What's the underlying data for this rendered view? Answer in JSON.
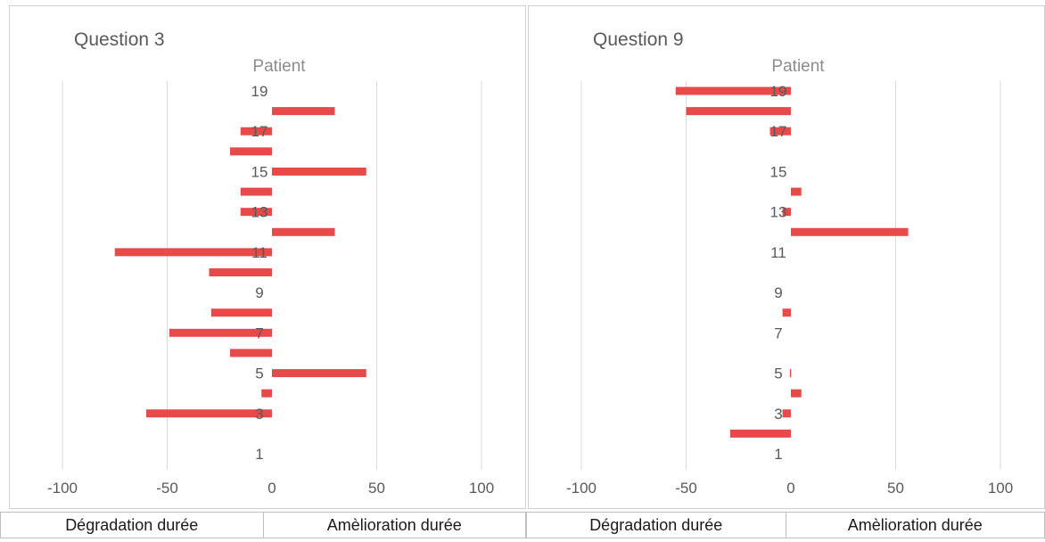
{
  "chart_data": [
    {
      "type": "bar",
      "orientation": "horizontal",
      "title": "Question 3",
      "ylabel": "Patient",
      "y_ticks": [
        1,
        3,
        5,
        7,
        9,
        11,
        13,
        15,
        17,
        19
      ],
      "ylim": [
        1,
        19
      ],
      "x_ticks": [
        -100,
        -50,
        0,
        50,
        100
      ],
      "xlim": [
        -100,
        100
      ],
      "grid": true,
      "series": [
        {
          "color": "#e84a4a",
          "patients": [
            3,
            4,
            5,
            6,
            7,
            8,
            10,
            11,
            12,
            13,
            14,
            15,
            16,
            17,
            18
          ],
          "values": [
            -60,
            -5,
            45,
            -20,
            -49,
            -29,
            -30,
            -75,
            30,
            -15,
            -15,
            45,
            -20,
            -15,
            30
          ]
        }
      ]
    },
    {
      "type": "bar",
      "orientation": "horizontal",
      "title": "Question 9",
      "ylabel": "Patient",
      "y_ticks": [
        1,
        3,
        5,
        7,
        9,
        11,
        13,
        15,
        17,
        19
      ],
      "ylim": [
        1,
        19
      ],
      "x_ticks": [
        -100,
        -50,
        0,
        50,
        100
      ],
      "xlim": [
        -100,
        100
      ],
      "grid": true,
      "series": [
        {
          "color": "#e84a4a",
          "patients": [
            2,
            3,
            4,
            5,
            8,
            12,
            13,
            14,
            17,
            18,
            19
          ],
          "values": [
            -29,
            -4,
            5,
            -0.5,
            -4,
            56,
            -4,
            5,
            -10,
            -50,
            -55
          ]
        }
      ]
    }
  ],
  "footer": {
    "left_label": "Dégradation durée",
    "right_label": "Amèlioration durée"
  }
}
